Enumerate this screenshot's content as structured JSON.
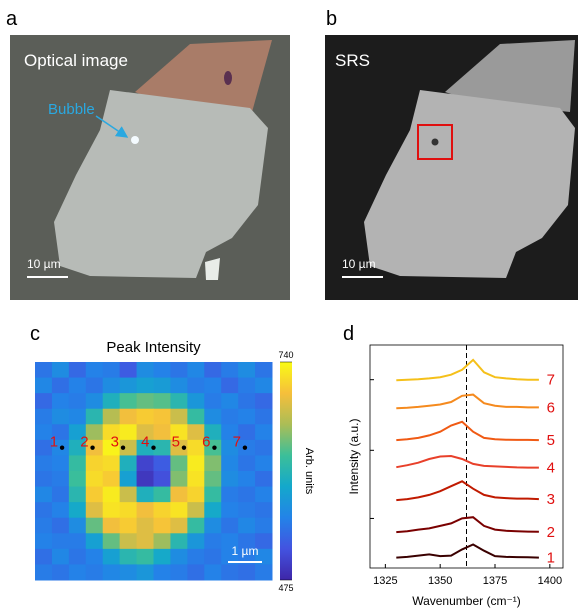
{
  "panel_labels": [
    "a",
    "b",
    "c",
    "d"
  ],
  "images": [
    {
      "label": "Optical image",
      "annotation": "Bubble",
      "scale_bar": "10 µm"
    },
    {
      "label": "SRS",
      "scale_bar": "10 µm"
    }
  ],
  "chart_data": [
    {
      "type": "heatmap",
      "title": "Peak Intensity",
      "colorbar_label": "Arb. units",
      "clim": [
        475,
        740
      ],
      "cticks": [
        475,
        740
      ],
      "colormap": [
        "#3e26a8",
        "#4353e0",
        "#2383e8",
        "#14a8cb",
        "#3cbf99",
        "#abbd56",
        "#f6bf3b",
        "#f9fb15"
      ],
      "point_labels": [
        "1",
        "2",
        "3",
        "4",
        "5",
        "6",
        "7"
      ],
      "scale_bar": "1 µm",
      "values": [
        [
          540,
          560,
          530,
          550,
          545,
          520,
          560,
          550,
          540,
          555,
          530,
          545,
          560,
          540
        ],
        [
          555,
          535,
          550,
          540,
          560,
          570,
          580,
          575,
          560,
          545,
          550,
          530,
          545,
          555
        ],
        [
          530,
          550,
          545,
          560,
          600,
          630,
          640,
          635,
          610,
          570,
          545,
          555,
          540,
          530
        ],
        [
          545,
          560,
          555,
          610,
          670,
          700,
          710,
          705,
          680,
          620,
          560,
          545,
          550,
          540
        ],
        [
          550,
          540,
          580,
          660,
          720,
          730,
          690,
          700,
          725,
          690,
          600,
          550,
          535,
          550
        ],
        [
          535,
          555,
          600,
          700,
          735,
          680,
          600,
          610,
          690,
          720,
          630,
          560,
          545,
          540
        ],
        [
          545,
          550,
          620,
          715,
          720,
          600,
          500,
          520,
          640,
          730,
          650,
          555,
          540,
          550
        ],
        [
          540,
          545,
          625,
          720,
          710,
          580,
          490,
          510,
          650,
          725,
          640,
          560,
          550,
          535
        ],
        [
          555,
          540,
          610,
          710,
          730,
          680,
          600,
          620,
          700,
          715,
          620,
          545,
          540,
          550
        ],
        [
          540,
          550,
          590,
          690,
          725,
          720,
          700,
          715,
          725,
          680,
          590,
          550,
          545,
          540
        ],
        [
          545,
          535,
          560,
          640,
          700,
          710,
          690,
          705,
          690,
          620,
          560,
          540,
          555,
          545
        ],
        [
          550,
          545,
          545,
          580,
          640,
          680,
          690,
          660,
          610,
          570,
          545,
          550,
          540,
          530
        ],
        [
          535,
          555,
          540,
          550,
          580,
          610,
          620,
          590,
          560,
          545,
          540,
          550,
          545,
          555
        ],
        [
          545,
          540,
          550,
          545,
          555,
          560,
          570,
          550,
          545,
          535,
          550,
          540,
          535,
          545
        ]
      ]
    },
    {
      "type": "line",
      "x_label": "Wavenumber (cm⁻¹)",
      "y_label": "Intensity (a.u.)",
      "xlim": [
        1318,
        1406
      ],
      "ylim": [
        0,
        9
      ],
      "xticks": [
        1325,
        1350,
        1375,
        1400
      ],
      "yticks": [
        2,
        4.75,
        7.6
      ],
      "reference_x": 1362,
      "x": [
        1330,
        1335,
        1340,
        1345,
        1350,
        1355,
        1360,
        1365,
        1370,
        1375,
        1380,
        1385,
        1390,
        1395
      ],
      "series": [
        {
          "name": "1",
          "color": "#3a0000",
          "values": [
            0.42,
            0.45,
            0.5,
            0.55,
            0.48,
            0.5,
            0.75,
            0.95,
            0.7,
            0.48,
            0.45,
            0.44,
            0.43,
            0.42
          ]
        },
        {
          "name": "2",
          "color": "#7a0000",
          "values": [
            1.45,
            1.48,
            1.55,
            1.6,
            1.7,
            1.8,
            2.0,
            2.05,
            1.7,
            1.55,
            1.5,
            1.48,
            1.47,
            1.46
          ]
        },
        {
          "name": "3",
          "color": "#c01a00",
          "values": [
            2.74,
            2.78,
            2.85,
            2.95,
            3.1,
            3.3,
            3.5,
            3.2,
            2.95,
            2.85,
            2.82,
            2.8,
            2.8,
            2.78
          ]
        },
        {
          "name": "4",
          "color": "#e8402a",
          "values": [
            4.07,
            4.15,
            4.25,
            4.4,
            4.5,
            4.52,
            4.4,
            4.2,
            4.12,
            4.1,
            4.08,
            4.06,
            4.05,
            4.05
          ]
        },
        {
          "name": "5",
          "color": "#f05a14",
          "values": [
            5.16,
            5.2,
            5.25,
            5.35,
            5.5,
            5.75,
            5.9,
            5.5,
            5.25,
            5.2,
            5.18,
            5.17,
            5.17,
            5.16
          ]
        },
        {
          "name": "6",
          "color": "#f58a1e",
          "values": [
            6.45,
            6.47,
            6.5,
            6.55,
            6.6,
            6.7,
            6.95,
            7.0,
            6.65,
            6.55,
            6.5,
            6.5,
            6.48,
            6.48
          ]
        },
        {
          "name": "7",
          "color": "#f5c01a",
          "values": [
            7.58,
            7.6,
            7.62,
            7.65,
            7.7,
            7.8,
            8.0,
            8.4,
            7.9,
            7.7,
            7.65,
            7.62,
            7.6,
            7.6
          ]
        }
      ]
    }
  ]
}
